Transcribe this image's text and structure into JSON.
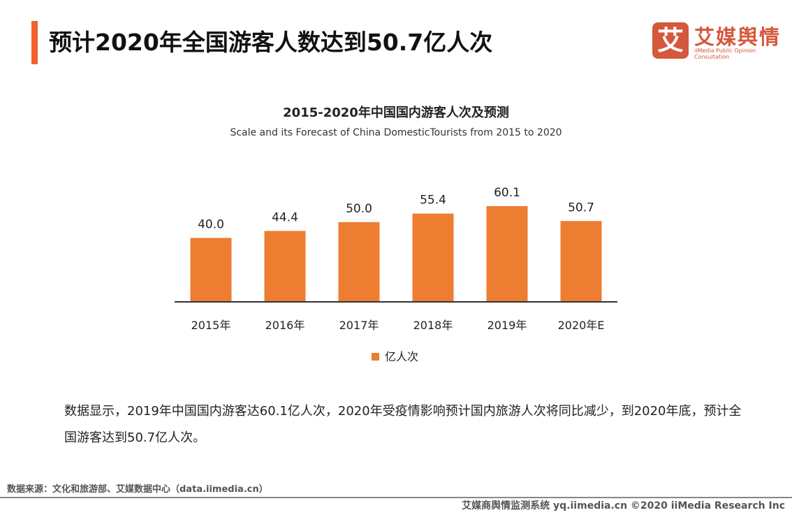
{
  "header": {
    "title": "预计2020年全国游客人数达到50.7亿人次",
    "accent_color": "#f0622d"
  },
  "logo": {
    "mark": "艾",
    "cn": "艾媒舆情",
    "en": "iiMedia Public Opinion Consultation",
    "color": "#d4583b"
  },
  "chart_data": {
    "type": "bar",
    "title": "2015-2020年中国国内游客人次及预测",
    "subtitle": "Scale and its Forecast of China DomesticTourists from 2015 to 2020",
    "categories": [
      "2015年",
      "2016年",
      "2017年",
      "2018年",
      "2019年",
      "2020年E"
    ],
    "series": [
      {
        "name": "亿人次",
        "values": [
          40.0,
          44.4,
          50.0,
          55.4,
          60.1,
          50.7
        ],
        "labels": [
          "40.0",
          "44.4",
          "50.0",
          "55.4",
          "60.1",
          "50.7"
        ],
        "color": "#ed7d31"
      }
    ],
    "ylim": [
      0,
      60.1
    ],
    "grid": false,
    "legend": "bottom"
  },
  "description": "数据显示，2019年中国国内游客达60.1亿人次，2020年受疫情影响预计国内旅游人次将同比减少，到2020年底，预计全国游客达到50.7亿人次。",
  "source": "数据来源：文化和旅游部、艾媒数据中心（data.iimedia.cn）",
  "footer": "艾媒商舆情监测系统 yq.iimedia.cn  ©2020  iiMedia Research  Inc"
}
